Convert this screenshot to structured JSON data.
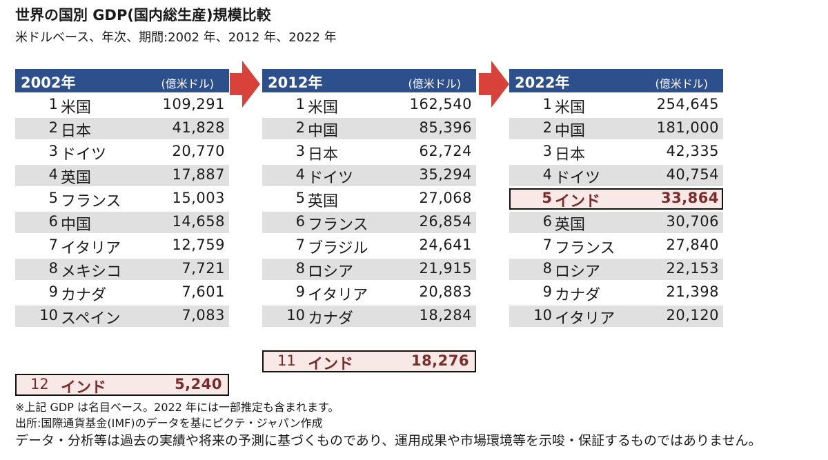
{
  "title": "世界の国別 GDP(国内総生産)規模比較",
  "subtitle": "米ドルベース、年次、期間:2002 年、2012 年、2022 年",
  "colors": {
    "header": "#2d508c",
    "stripe": "#e0e0e0",
    "highlight_bg": "#f9e9e6",
    "highlight_text": "#7a2c2c",
    "arrow": "#d9423b"
  },
  "chart_data": {
    "type": "table",
    "panels": [
      {
        "year": "2002年",
        "unit": "(億米ドル)",
        "rows": [
          {
            "rank": "1",
            "country": "米国",
            "value": "109,291"
          },
          {
            "rank": "2",
            "country": "日本",
            "value": "41,828"
          },
          {
            "rank": "3",
            "country": "ドイツ",
            "value": "20,770"
          },
          {
            "rank": "4",
            "country": "英国",
            "value": "17,887"
          },
          {
            "rank": "5",
            "country": "フランス",
            "value": "15,003"
          },
          {
            "rank": "6",
            "country": "中国",
            "value": "14,658"
          },
          {
            "rank": "7",
            "country": "イタリア",
            "value": "12,759"
          },
          {
            "rank": "8",
            "country": "メキシコ",
            "value": "7,721"
          },
          {
            "rank": "9",
            "country": "カナダ",
            "value": "7,601"
          },
          {
            "rank": "10",
            "country": "スペイン",
            "value": "7,083"
          }
        ],
        "india": {
          "rank": "12",
          "country": "インド",
          "value": "5,240"
        }
      },
      {
        "year": "2012年",
        "unit": "(億米ドル)",
        "rows": [
          {
            "rank": "1",
            "country": "米国",
            "value": "162,540"
          },
          {
            "rank": "2",
            "country": "中国",
            "value": "85,396"
          },
          {
            "rank": "3",
            "country": "日本",
            "value": "62,724"
          },
          {
            "rank": "4",
            "country": "ドイツ",
            "value": "35,294"
          },
          {
            "rank": "5",
            "country": "英国",
            "value": "27,068"
          },
          {
            "rank": "6",
            "country": "フランス",
            "value": "26,854"
          },
          {
            "rank": "7",
            "country": "ブラジル",
            "value": "24,641"
          },
          {
            "rank": "8",
            "country": "ロシア",
            "value": "21,915"
          },
          {
            "rank": "9",
            "country": "イタリア",
            "value": "20,883"
          },
          {
            "rank": "10",
            "country": "カナダ",
            "value": "18,284"
          }
        ],
        "india": {
          "rank": "11",
          "country": "インド",
          "value": "18,276"
        }
      },
      {
        "year": "2022年",
        "unit": "(億米ドル)",
        "rows": [
          {
            "rank": "1",
            "country": "米国",
            "value": "254,645"
          },
          {
            "rank": "2",
            "country": "中国",
            "value": "181,000"
          },
          {
            "rank": "3",
            "country": "日本",
            "value": "42,335"
          },
          {
            "rank": "4",
            "country": "ドイツ",
            "value": "40,754"
          },
          {
            "rank": "5",
            "country": "インド",
            "value": "33,864"
          },
          {
            "rank": "6",
            "country": "英国",
            "value": "30,706"
          },
          {
            "rank": "7",
            "country": "フランス",
            "value": "27,840"
          },
          {
            "rank": "8",
            "country": "ロシア",
            "value": "22,153"
          },
          {
            "rank": "9",
            "country": "カナダ",
            "value": "21,398"
          },
          {
            "rank": "10",
            "country": "イタリア",
            "value": "20,120"
          }
        ],
        "highlight_row": 4
      }
    ]
  },
  "notes": {
    "note1": "※上記 GDP は名目ベース。2022 年には一部推定も含まれます。",
    "note2": "出所:国際通貨基金(IMF)のデータを基にピクテ・ジャパン作成",
    "disclaimer": "データ・分析等は過去の実績や将来の予測に基づくものであり、運用成果や市場環境等を示唆・保証するものではありません。"
  }
}
